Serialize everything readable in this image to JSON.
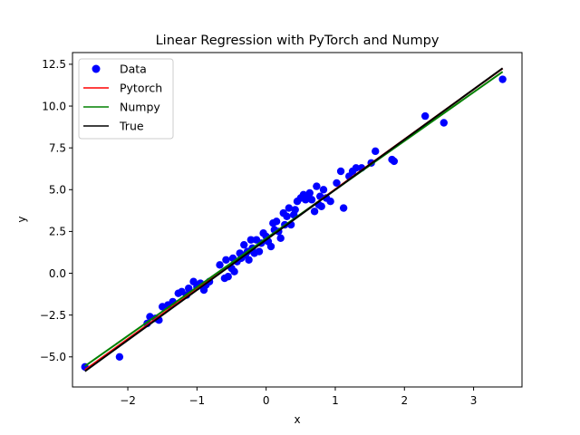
{
  "chart_data": {
    "type": "scatter",
    "title": "Linear Regression with PyTorch and Numpy",
    "xlabel": "x",
    "ylabel": "y",
    "xlim": [
      -2.8,
      3.7
    ],
    "ylim": [
      -6.8,
      13.2
    ],
    "xticks": [
      -2,
      -1,
      0,
      1,
      2,
      3
    ],
    "xtick_labels": [
      "−2",
      "−1",
      "0",
      "1",
      "2",
      "3"
    ],
    "yticks": [
      -5.0,
      -2.5,
      0.0,
      2.5,
      5.0,
      7.5,
      10.0,
      12.5
    ],
    "ytick_labels": [
      "−5.0",
      "−2.5",
      "0.0",
      "2.5",
      "5.0",
      "7.5",
      "10.0",
      "12.5"
    ],
    "grid": false,
    "legend_position": "top-left",
    "legend": [
      "Data",
      "Pytorch",
      "Numpy",
      "True"
    ],
    "scatter": {
      "name": "Data",
      "color": "#0000ff",
      "x": [
        -2.62,
        -2.12,
        -1.72,
        -1.68,
        -1.6,
        -1.55,
        -1.5,
        -1.42,
        -1.35,
        -1.27,
        -1.22,
        -1.15,
        -1.12,
        -1.05,
        -1.0,
        -0.95,
        -0.9,
        -0.87,
        -0.82,
        -0.67,
        -0.6,
        -0.58,
        -0.55,
        -0.5,
        -0.48,
        -0.46,
        -0.42,
        -0.38,
        -0.36,
        -0.32,
        -0.3,
        -0.27,
        -0.25,
        -0.22,
        -0.2,
        -0.17,
        -0.14,
        -0.1,
        -0.07,
        -0.04,
        0.0,
        0.03,
        0.07,
        0.1,
        0.12,
        0.15,
        0.18,
        0.21,
        0.25,
        0.27,
        0.3,
        0.33,
        0.36,
        0.4,
        0.42,
        0.45,
        0.5,
        0.54,
        0.57,
        0.6,
        0.63,
        0.66,
        0.7,
        0.73,
        0.76,
        0.78,
        0.8,
        0.83,
        0.87,
        0.93,
        1.02,
        1.08,
        1.12,
        1.2,
        1.25,
        1.3,
        1.38,
        1.52,
        1.58,
        1.82,
        1.85,
        2.3,
        2.57,
        3.42
      ],
      "y": [
        -5.6,
        -5.0,
        -3.0,
        -2.6,
        -2.7,
        -2.8,
        -2.0,
        -1.9,
        -1.7,
        -1.2,
        -1.1,
        -1.3,
        -0.9,
        -0.5,
        -0.8,
        -0.6,
        -1.0,
        -0.7,
        -0.5,
        0.5,
        -0.3,
        0.8,
        -0.2,
        0.3,
        0.9,
        0.1,
        0.7,
        1.2,
        0.9,
        1.7,
        1.1,
        1.3,
        0.8,
        2.0,
        1.5,
        1.2,
        2.0,
        1.3,
        1.8,
        2.4,
        2.2,
        1.9,
        1.6,
        3.0,
        2.6,
        3.1,
        2.5,
        2.1,
        3.6,
        2.9,
        3.4,
        3.9,
        2.9,
        3.5,
        3.8,
        4.3,
        4.5,
        4.7,
        4.4,
        4.6,
        4.8,
        4.4,
        3.7,
        5.2,
        4.1,
        4.6,
        4.0,
        5.0,
        4.5,
        4.3,
        5.4,
        6.1,
        3.9,
        5.8,
        6.1,
        6.3,
        6.3,
        6.6,
        7.3,
        6.8,
        6.7,
        9.4,
        9.0,
        11.6
      ]
    },
    "lines": [
      {
        "name": "Pytorch",
        "color": "#ff0000",
        "x": [
          -2.62,
          3.42
        ],
        "y": [
          -5.78,
          12.25
        ]
      },
      {
        "name": "Numpy",
        "color": "#008000",
        "x": [
          -2.62,
          3.42
        ],
        "y": [
          -5.55,
          12.05
        ]
      },
      {
        "name": "True",
        "color": "#000000",
        "x": [
          -2.62,
          3.42
        ],
        "y": [
          -5.86,
          12.26
        ]
      }
    ]
  }
}
